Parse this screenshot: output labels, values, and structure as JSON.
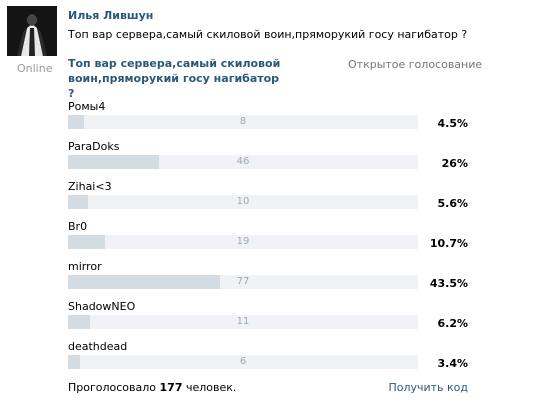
{
  "post": {
    "author": "Илья Лившун",
    "status": "Online",
    "text": "Топ вар сервера,самый скиловой воин,пряморукий госу нагибатор ?"
  },
  "poll": {
    "title": "Топ вар сервера,самый скиловой воин,пряморукий госу нагибатор ?",
    "type": "Открытое голосование",
    "options": [
      {
        "label": "Pомы4",
        "count": "8",
        "percent": "4.5%",
        "fraction": 0.045
      },
      {
        "label": "ParaDoks",
        "count": "46",
        "percent": "26%",
        "fraction": 0.26
      },
      {
        "label": "Zihai<3",
        "count": "10",
        "percent": "5.6%",
        "fraction": 0.056
      },
      {
        "label": "Br0",
        "count": "19",
        "percent": "10.7%",
        "fraction": 0.107
      },
      {
        "label": "mirror",
        "count": "77",
        "percent": "43.5%",
        "fraction": 0.435
      },
      {
        "label": "ShadowNEO",
        "count": "11",
        "percent": "6.2%",
        "fraction": 0.062
      },
      {
        "label": "deathdead",
        "count": "6",
        "percent": "3.4%",
        "fraction": 0.034
      }
    ],
    "footer_prefix": "Проголосовало",
    "total_voters": "177",
    "footer_suffix": "человек.",
    "get_code": "Получить код"
  },
  "colors": {
    "link": "#2b587a",
    "bar_fill": "#d3dbe3",
    "bar_bg": "#f0f2f5"
  }
}
